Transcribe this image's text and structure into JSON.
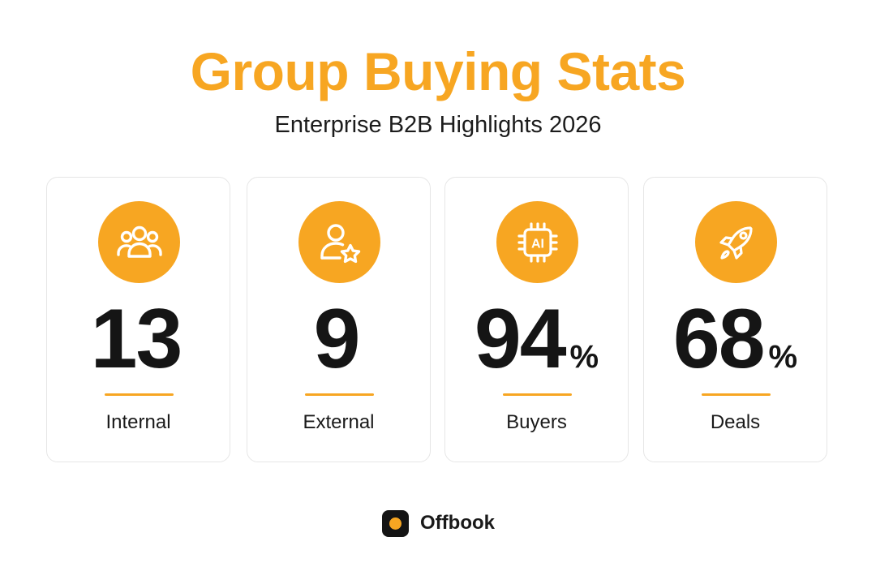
{
  "header": {
    "title": "Group Buying Stats",
    "subtitle": "Enterprise B2B Highlights 2026"
  },
  "colors": {
    "accent": "#F7A622",
    "text": "#151515"
  },
  "stats": [
    {
      "icon": "people-group-icon",
      "value": "13",
      "unit": "",
      "label": "Internal"
    },
    {
      "icon": "user-star-icon",
      "value": "9",
      "unit": "",
      "label": "External"
    },
    {
      "icon": "ai-chip-icon",
      "value": "94",
      "unit": "%",
      "label": "Buyers",
      "chip_text": "AI"
    },
    {
      "icon": "rocket-icon",
      "value": "68",
      "unit": "%",
      "label": "Deals"
    }
  ],
  "brand": {
    "name": "Offbook",
    "icon": "offbook-logo-icon"
  }
}
